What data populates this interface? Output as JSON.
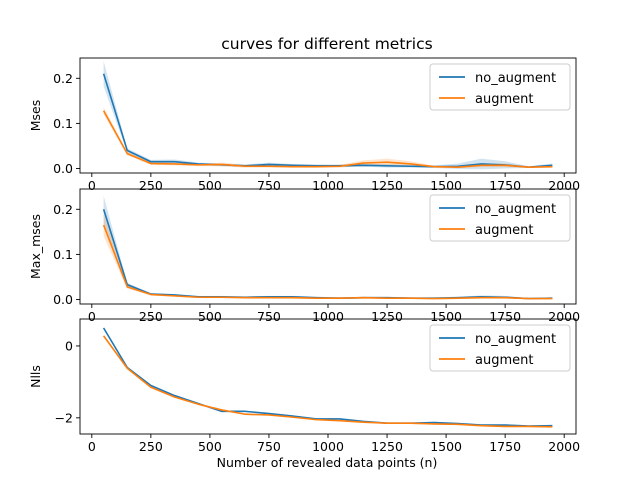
{
  "chart_data": {
    "type": "line",
    "title": "curves for different metrics",
    "xlabel": "Number of revealed data points (n)",
    "x": [
      50,
      150,
      250,
      350,
      450,
      550,
      650,
      750,
      850,
      950,
      1050,
      1150,
      1250,
      1350,
      1450,
      1550,
      1650,
      1750,
      1850,
      1950
    ],
    "x_ticks": [
      0,
      250,
      500,
      750,
      1000,
      1250,
      1500,
      1750,
      2000
    ],
    "xlim": [
      -50,
      2050
    ],
    "colors": {
      "no_augment": "#1f77b4",
      "augment": "#ff7f0e"
    },
    "panels": [
      {
        "ylabel": "Mses",
        "ylim": [
          -0.01,
          0.245
        ],
        "y_ticks": [
          0.0,
          0.1,
          0.2
        ],
        "y_tick_labels": [
          "0.0",
          "0.1",
          "0.2"
        ],
        "legend_position": "upper-right",
        "series": [
          {
            "name": "no_augment",
            "values": [
              0.21,
              0.04,
              0.015,
              0.015,
              0.01,
              0.008,
              0.006,
              0.009,
              0.007,
              0.006,
              0.006,
              0.007,
              0.006,
              0.005,
              0.004,
              0.005,
              0.01,
              0.008,
              0.003,
              0.007
            ],
            "band": [
              0.028,
              0.005,
              0.004,
              0.005,
              0.003,
              0.003,
              0.003,
              0.004,
              0.003,
              0.003,
              0.003,
              0.003,
              0.004,
              0.003,
              0.003,
              0.006,
              0.012,
              0.008,
              0.002,
              0.004
            ]
          },
          {
            "name": "augment",
            "values": [
              0.128,
              0.033,
              0.011,
              0.01,
              0.008,
              0.009,
              0.005,
              0.005,
              0.004,
              0.004,
              0.005,
              0.012,
              0.014,
              0.01,
              0.004,
              0.003,
              0.007,
              0.007,
              0.003,
              0.004
            ],
            "band": [
              0.008,
              0.004,
              0.003,
              0.003,
              0.003,
              0.004,
              0.003,
              0.003,
              0.002,
              0.002,
              0.003,
              0.006,
              0.008,
              0.006,
              0.002,
              0.002,
              0.004,
              0.004,
              0.002,
              0.002
            ]
          }
        ]
      },
      {
        "ylabel": "Max_mses",
        "ylim": [
          -0.01,
          0.245
        ],
        "y_ticks": [
          0.0,
          0.1,
          0.2
        ],
        "y_tick_labels": [
          "0.0",
          "0.1",
          "0.2"
        ],
        "legend_position": "upper-right",
        "series": [
          {
            "name": "no_augment",
            "values": [
              0.2,
              0.033,
              0.012,
              0.01,
              0.006,
              0.006,
              0.005,
              0.006,
              0.006,
              0.004,
              0.003,
              0.004,
              0.004,
              0.003,
              0.003,
              0.004,
              0.006,
              0.005,
              0.002,
              0.003
            ],
            "band": [
              0.03,
              0.004,
              0.002,
              0.002,
              0.002,
              0.002,
              0.002,
              0.002,
              0.002,
              0.002,
              0.002,
              0.002,
              0.002,
              0.002,
              0.002,
              0.002,
              0.003,
              0.003,
              0.001,
              0.002
            ],
            "band_shown": [
              true
            ]
          },
          {
            "name": "augment",
            "values": [
              0.165,
              0.028,
              0.011,
              0.008,
              0.005,
              0.005,
              0.004,
              0.004,
              0.004,
              0.003,
              0.003,
              0.004,
              0.003,
              0.003,
              0.002,
              0.003,
              0.004,
              0.004,
              0.002,
              0.002
            ],
            "band": [
              0.025,
              0.004,
              0.002,
              0.002,
              0.002,
              0.002,
              0.002,
              0.002,
              0.002,
              0.002,
              0.002,
              0.002,
              0.002,
              0.002,
              0.001,
              0.002,
              0.002,
              0.002,
              0.001,
              0.001
            ]
          }
        ]
      },
      {
        "ylabel": "Nlls",
        "ylim": [
          -2.45,
          0.75
        ],
        "y_ticks": [
          0,
          -2
        ],
        "y_tick_labels": [
          "0",
          "−2"
        ],
        "legend_position": "upper-right",
        "series": [
          {
            "name": "no_augment",
            "values": [
              0.5,
              -0.6,
              -1.1,
              -1.38,
              -1.6,
              -1.82,
              -1.82,
              -1.88,
              -1.95,
              -2.03,
              -2.03,
              -2.1,
              -2.15,
              -2.15,
              -2.13,
              -2.16,
              -2.2,
              -2.2,
              -2.23,
              -2.22
            ],
            "band": [
              0.03,
              0.02,
              0.02,
              0.02,
              0.02,
              0.02,
              0.02,
              0.02,
              0.02,
              0.02,
              0.02,
              0.02,
              0.02,
              0.02,
              0.02,
              0.02,
              0.02,
              0.02,
              0.02,
              0.02
            ]
          },
          {
            "name": "augment",
            "values": [
              0.28,
              -0.62,
              -1.15,
              -1.42,
              -1.62,
              -1.78,
              -1.9,
              -1.92,
              -1.98,
              -2.05,
              -2.08,
              -2.12,
              -2.15,
              -2.15,
              -2.17,
              -2.18,
              -2.22,
              -2.24,
              -2.24,
              -2.25
            ],
            "band": [
              0.03,
              0.02,
              0.02,
              0.02,
              0.02,
              0.02,
              0.02,
              0.02,
              0.02,
              0.02,
              0.02,
              0.02,
              0.02,
              0.02,
              0.02,
              0.02,
              0.02,
              0.02,
              0.02,
              0.02
            ]
          }
        ]
      }
    ]
  }
}
